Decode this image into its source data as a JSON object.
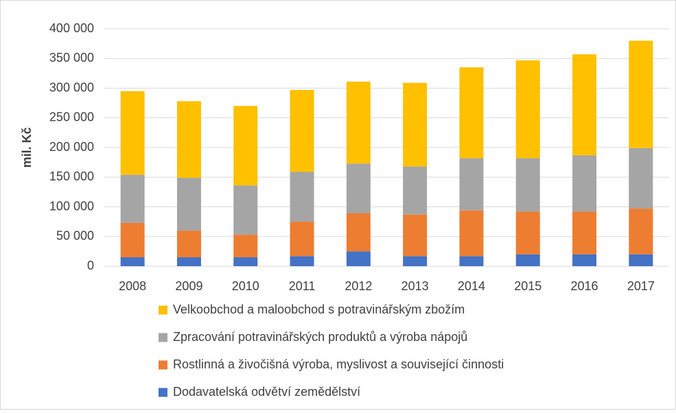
{
  "chart_data": {
    "type": "stacked_bar",
    "ylabel": "mil. Kč",
    "categories": [
      "2008",
      "2009",
      "2010",
      "2011",
      "2012",
      "2013",
      "2014",
      "2015",
      "2016",
      "2017"
    ],
    "series": [
      {
        "name": "Dodavatelská odvětví zemědělství",
        "color": "#4472c4",
        "values": [
          15000,
          15000,
          15000,
          17000,
          25000,
          17000,
          17000,
          20000,
          20000,
          20000
        ]
      },
      {
        "name": "Rostlinná a živočišná výroba, myslivost a související činnosti",
        "color": "#ed7d31",
        "values": [
          58000,
          45000,
          38000,
          58000,
          64000,
          70000,
          77000,
          72000,
          72000,
          77000
        ]
      },
      {
        "name": "Zpracování potravinářských produktů a výroba nápojů",
        "color": "#a5a5a5",
        "values": [
          81000,
          89000,
          83000,
          84000,
          84000,
          81000,
          88000,
          90000,
          95000,
          102000
        ]
      },
      {
        "name": "Velkoobchod a maloobchod s potravinářským zbožím",
        "color": "#ffc000",
        "values": [
          141000,
          129000,
          134000,
          138000,
          138000,
          141000,
          153000,
          165000,
          170000,
          181000
        ]
      }
    ],
    "ylim": [
      0,
      400000
    ],
    "yticks": [
      0,
      {
        "value": 50000,
        "label": "50 000"
      },
      {
        "value": 100000,
        "label": "100 000"
      },
      {
        "value": 150000,
        "label": "150 000"
      },
      {
        "value": 200000,
        "label": "200 000"
      },
      {
        "value": 250000,
        "label": "250 000"
      },
      {
        "value": 300000,
        "label": "300 000"
      },
      {
        "value": 350000,
        "label": "350 000"
      },
      {
        "value": 400000,
        "label": "400 000"
      }
    ],
    "grid": true,
    "legend": "bottom"
  }
}
